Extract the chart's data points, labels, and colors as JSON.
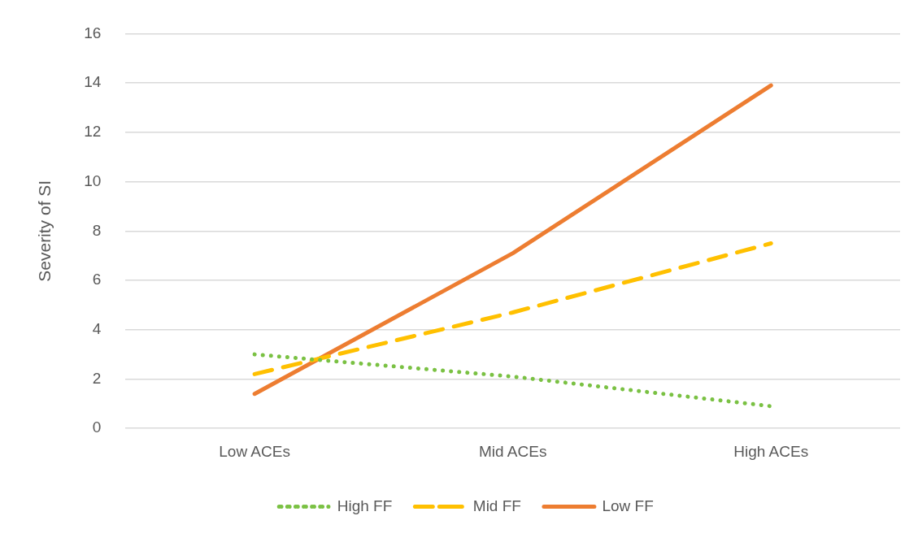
{
  "chart_data": {
    "type": "line",
    "ylabel": "Severity of SI",
    "categories": [
      "Low ACEs",
      "Mid ACEs",
      "High ACEs"
    ],
    "series": [
      {
        "name": "High FF",
        "color": "#7ac143",
        "values": [
          3.0,
          2.1,
          0.9
        ],
        "line_style": "dotted"
      },
      {
        "name": "Mid FF",
        "color": "#ffc000",
        "values": [
          2.2,
          4.7,
          7.5
        ],
        "line_style": "dashed"
      },
      {
        "name": "Low FF",
        "color": "#ed7d31",
        "values": [
          1.4,
          7.1,
          13.9
        ],
        "line_style": "solid"
      }
    ],
    "ylim": [
      0,
      16
    ],
    "yticks": [
      0,
      2,
      4,
      6,
      8,
      10,
      12,
      14,
      16
    ],
    "grid": "y",
    "legend": "bottom",
    "marker": "none"
  }
}
